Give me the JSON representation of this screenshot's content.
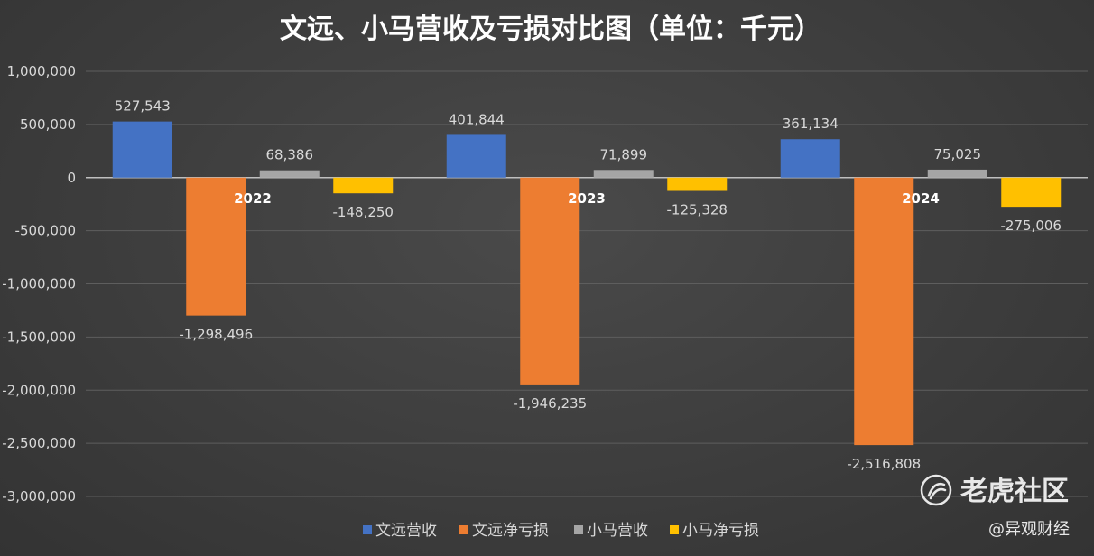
{
  "chart_data": {
    "type": "bar",
    "title": "文远、小马营收及亏损对比图（单位：千元）",
    "categories": [
      "2022",
      "2023",
      "2024"
    ],
    "series": [
      {
        "name": "文远营收",
        "color": "#4472C4",
        "values": [
          527543,
          401844,
          361134
        ],
        "labels": [
          "527,543",
          "401,844",
          "361,134"
        ]
      },
      {
        "name": "文远净亏损",
        "color": "#ED7D31",
        "values": [
          -1298496,
          -1946235,
          -2516808
        ],
        "labels": [
          "-1,298,496",
          "-1,946,235",
          "-2,516,808"
        ]
      },
      {
        "name": "小马营收",
        "color": "#A5A5A5",
        "values": [
          68386,
          71899,
          75025
        ],
        "labels": [
          "68,386",
          "71,899",
          "75,025"
        ]
      },
      {
        "name": "小马净亏损",
        "color": "#FFC000",
        "values": [
          -148250,
          -125328,
          -275006
        ],
        "labels": [
          "-148,250",
          "-125,328",
          "-275,006"
        ]
      }
    ],
    "ylim": [
      -3000000,
      1000000
    ],
    "yticks": [
      1000000,
      500000,
      0,
      -500000,
      -1000000,
      -1500000,
      -2000000,
      -2500000,
      -3000000
    ],
    "ytick_labels": [
      "1,000,000",
      "500,000",
      "0",
      "-500,000",
      "-1,000,000",
      "-1,500,000",
      "-2,000,000",
      "-2,500,000",
      "-3,000,000"
    ],
    "grid": true,
    "legend_position": "bottom"
  },
  "watermark": {
    "text": "老虎社区",
    "icon": "tiger-community-logo"
  },
  "credit": "@异观财经"
}
